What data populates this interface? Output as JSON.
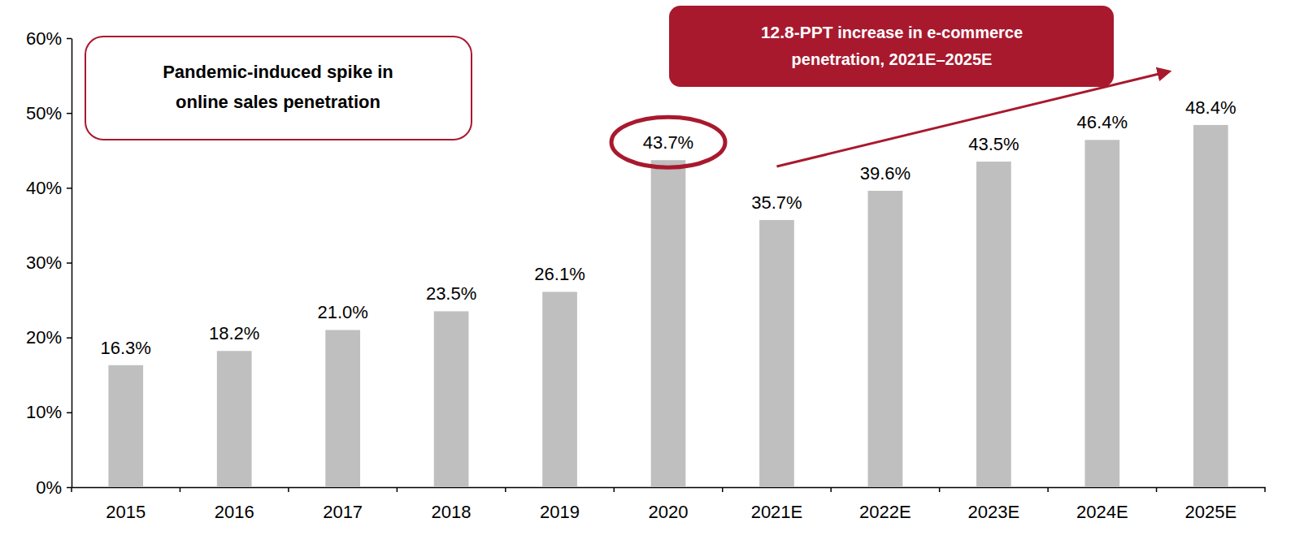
{
  "chart_data": {
    "type": "bar",
    "categories": [
      "2015",
      "2016",
      "2017",
      "2018",
      "2019",
      "2020",
      "2021E",
      "2022E",
      "2023E",
      "2024E",
      "2025E"
    ],
    "values": [
      16.3,
      18.2,
      21.0,
      23.5,
      26.1,
      43.7,
      35.7,
      39.6,
      43.5,
      46.4,
      48.4
    ],
    "value_labels": [
      "16.3%",
      "18.2%",
      "21.0%",
      "23.5%",
      "26.1%",
      "43.7%",
      "35.7%",
      "39.6%",
      "43.5%",
      "46.4%",
      "48.4%"
    ],
    "color": "#bfbfbf",
    "data_labels": true,
    "ylim": [
      0,
      60
    ],
    "yticks": [
      {
        "value": 0,
        "label": "0%"
      },
      {
        "value": 10,
        "label": "10%"
      },
      {
        "value": 20,
        "label": "20%"
      },
      {
        "value": 30,
        "label": "30%"
      },
      {
        "value": 40,
        "label": "40%"
      },
      {
        "value": 50,
        "label": "50%"
      },
      {
        "value": 60,
        "label": "60%"
      }
    ],
    "annotations": [
      [
        "Pandemic-induced spike in",
        "online sales penetration"
      ],
      [
        "12.8-PPT increase in e-commerce",
        "penetration, 2021E–2025E"
      ]
    ]
  }
}
